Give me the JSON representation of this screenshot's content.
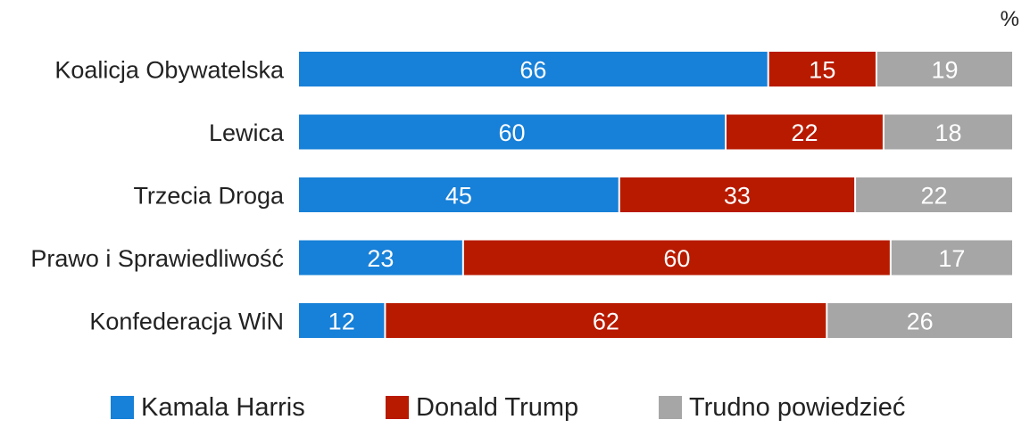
{
  "unit": "%",
  "colors": {
    "Kamala Harris": "#1780d8",
    "Donald Trump": "#b81a00",
    "Trudno powiedzieć": "#a6a6a6",
    "label_text": "#ffffff",
    "category_text": "#222222"
  },
  "legend": [
    {
      "label": "Kamala Harris",
      "color": "#1780d8",
      "icon": "square-swatch"
    },
    {
      "label": "Donald Trump",
      "color": "#b81a00",
      "icon": "square-swatch"
    },
    {
      "label": "Trudno powiedzieć",
      "color": "#a6a6a6",
      "icon": "square-swatch"
    }
  ],
  "chart_data": {
    "type": "bar",
    "orientation": "horizontal",
    "stacked": true,
    "unit": "%",
    "xlim": [
      0,
      100
    ],
    "grid": false,
    "legend_position": "bottom",
    "categories": [
      "Koalicja Obywatelska",
      "Lewica",
      "Trzecia Droga",
      "Prawo i Sprawiedliwość",
      "Konfederacja WiN"
    ],
    "series": [
      {
        "name": "Kamala Harris",
        "values": [
          66,
          60,
          45,
          23,
          12
        ]
      },
      {
        "name": "Donald Trump",
        "values": [
          15,
          22,
          33,
          60,
          62
        ]
      },
      {
        "name": "Trudno powiedzieć",
        "values": [
          19,
          18,
          22,
          17,
          26
        ]
      }
    ]
  }
}
